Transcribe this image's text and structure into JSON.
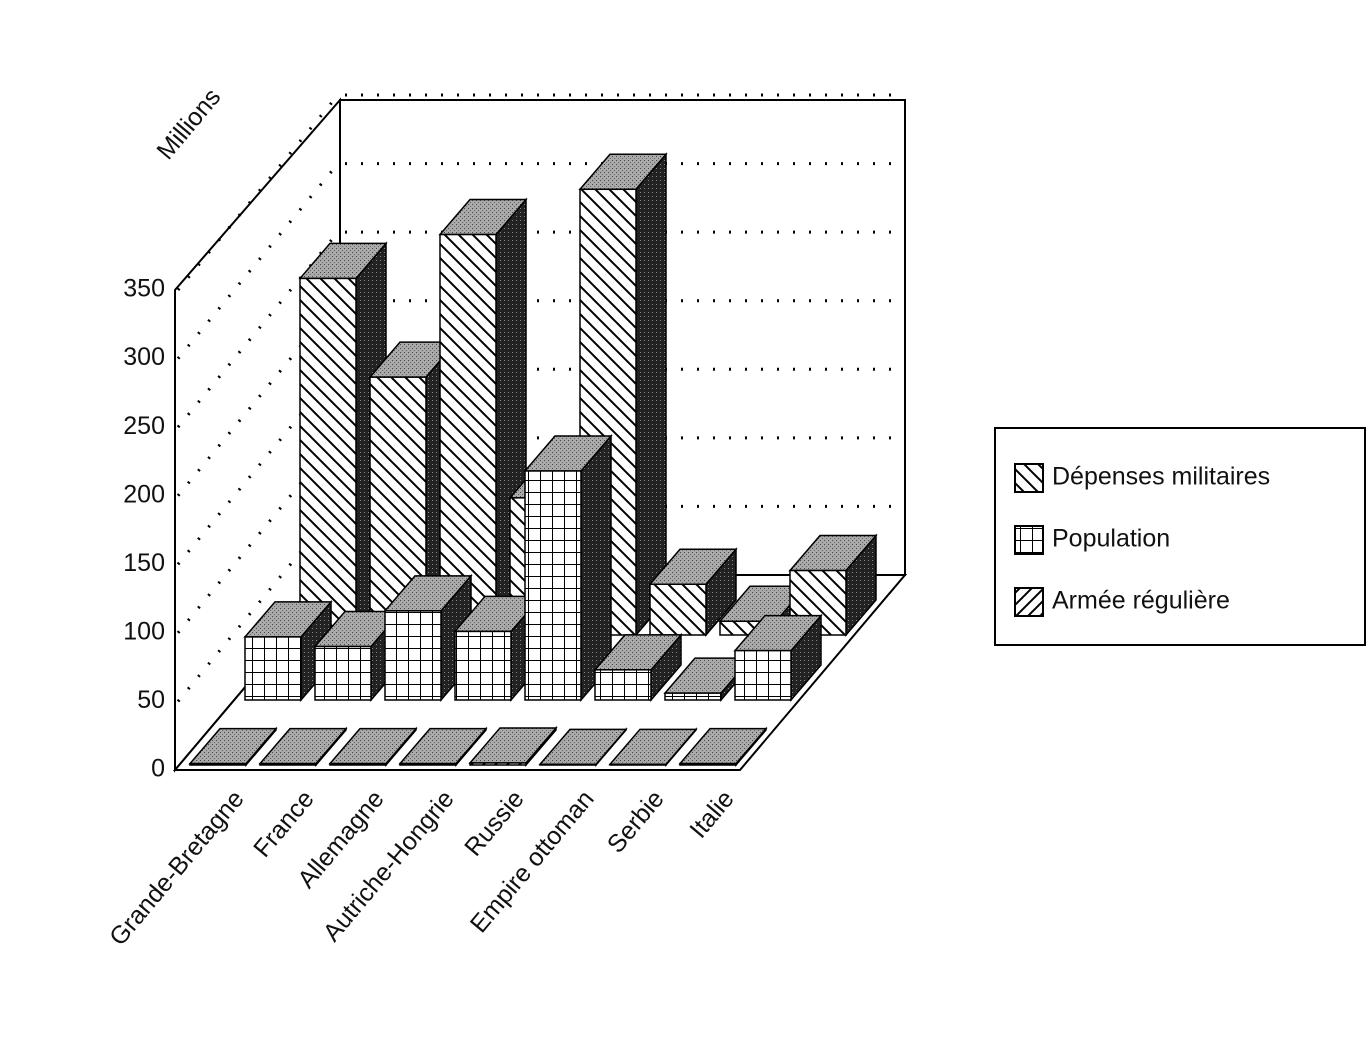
{
  "chart_data": {
    "type": "bar3d",
    "y_label": "Millions",
    "categories": [
      "Grande-Bretagne",
      "France",
      "Allemagne",
      "Autriche-Hongrie",
      "Russie",
      "Empire ottoman",
      "Serbie",
      "Italie"
    ],
    "series": [
      {
        "name": "Dépenses militaires",
        "values": [
          260,
          188,
          292,
          100,
          325,
          37,
          10,
          47
        ]
      },
      {
        "name": "Population",
        "values": [
          46,
          39,
          65,
          50,
          167,
          22,
          5,
          36
        ]
      },
      {
        "name": "Armée régulière",
        "values": [
          1,
          1,
          1,
          1,
          1.5,
          0.5,
          0.5,
          1
        ]
      }
    ],
    "ylim": [
      0,
      350
    ],
    "yticks": [
      0,
      50,
      100,
      150,
      200,
      250,
      300,
      350
    ],
    "grid": true
  }
}
